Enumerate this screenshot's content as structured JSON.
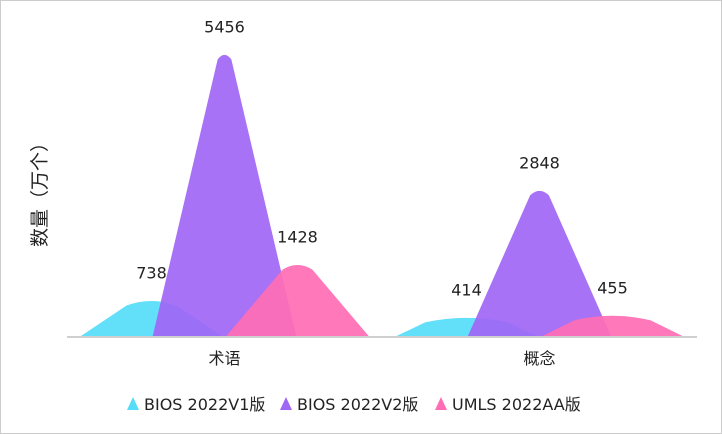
{
  "chart_data": {
    "type": "bar",
    "style": "pictorial triangle peaks, overlapping",
    "ylabel": "数量（万个）",
    "categories": [
      "术语",
      "概念"
    ],
    "ylim": [
      0,
      6000
    ],
    "grid": false,
    "legend_position": "bottom",
    "series": [
      {
        "name": "BIOS 2022V1版",
        "values": [
          738,
          414
        ],
        "color": "#55dcf8"
      },
      {
        "name": "BIOS 2022V2版",
        "values": [
          5456,
          2848
        ],
        "color": "#a066f5"
      },
      {
        "name": "UMLS 2022AA版",
        "values": [
          1428,
          455
        ],
        "color": "#ff6eb4"
      }
    ]
  }
}
